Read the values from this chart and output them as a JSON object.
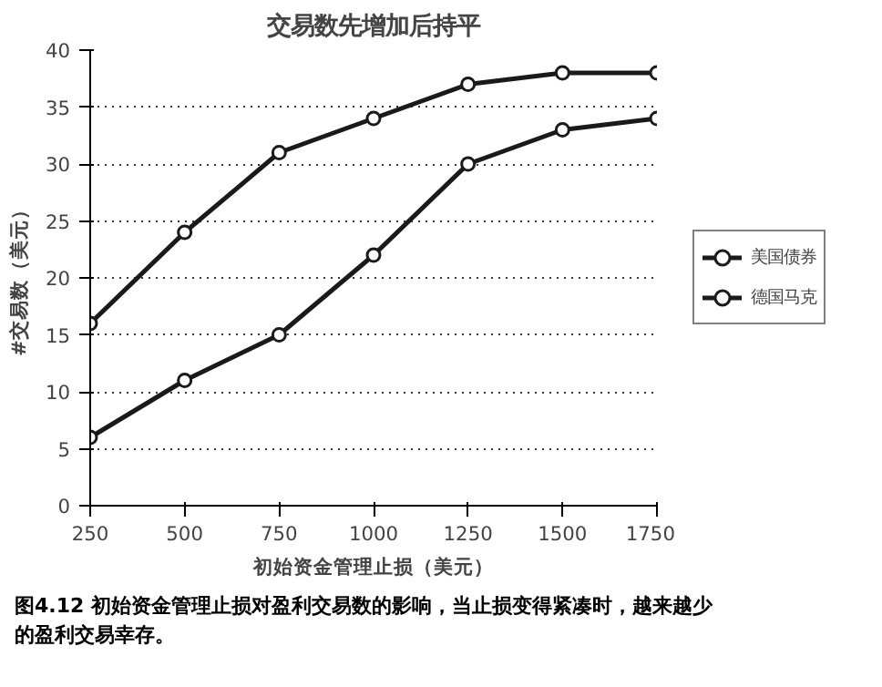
{
  "chart_data": {
    "type": "line",
    "title": "交易数先增加后持平",
    "xlabel": "初始资金管理止损（美元）",
    "ylabel": "#交易数（美元）",
    "x": [
      250,
      500,
      750,
      1000,
      1250,
      1500,
      1750
    ],
    "series": [
      {
        "name": "美国债券",
        "color": "#1a1a1a",
        "values": [
          16,
          24,
          31,
          34,
          37,
          38,
          38
        ]
      },
      {
        "name": "德国马克",
        "color": "#1a1a1a",
        "values": [
          6,
          11,
          15,
          22,
          30,
          33,
          34
        ]
      }
    ],
    "xlim": [
      250,
      1750
    ],
    "xticks": [
      250,
      500,
      750,
      1000,
      1250,
      1500,
      1750
    ],
    "ylim": [
      0,
      40
    ],
    "yticks": [
      0,
      5,
      10,
      15,
      20,
      25,
      30,
      35,
      40
    ],
    "grid": "y",
    "legend": "right",
    "marker": "circle",
    "line_style": "solid",
    "annotations": [
      "图4.12 初始资金管理止损对盈利交易数的影响，当止损变得紧凑时，越来越少",
      "的盈利交易幸存。"
    ]
  }
}
